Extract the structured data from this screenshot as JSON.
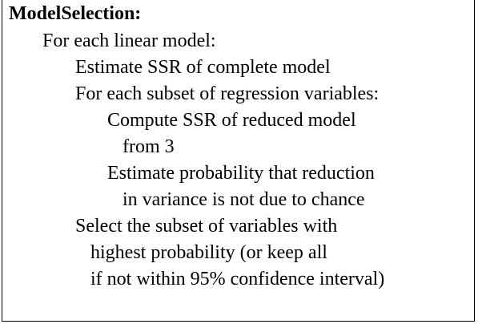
{
  "algorithm": {
    "title": "ModelSelection:",
    "lines": [
      "For each linear model:",
      "Estimate SSR of complete model",
      "For each subset of regression variables:",
      "Compute SSR of reduced model",
      "from 3",
      "Estimate probability that reduction",
      "in variance is not due to chance",
      "Select the subset of variables with",
      "highest probability (or keep all",
      "if not within 95% confidence interval)"
    ]
  }
}
